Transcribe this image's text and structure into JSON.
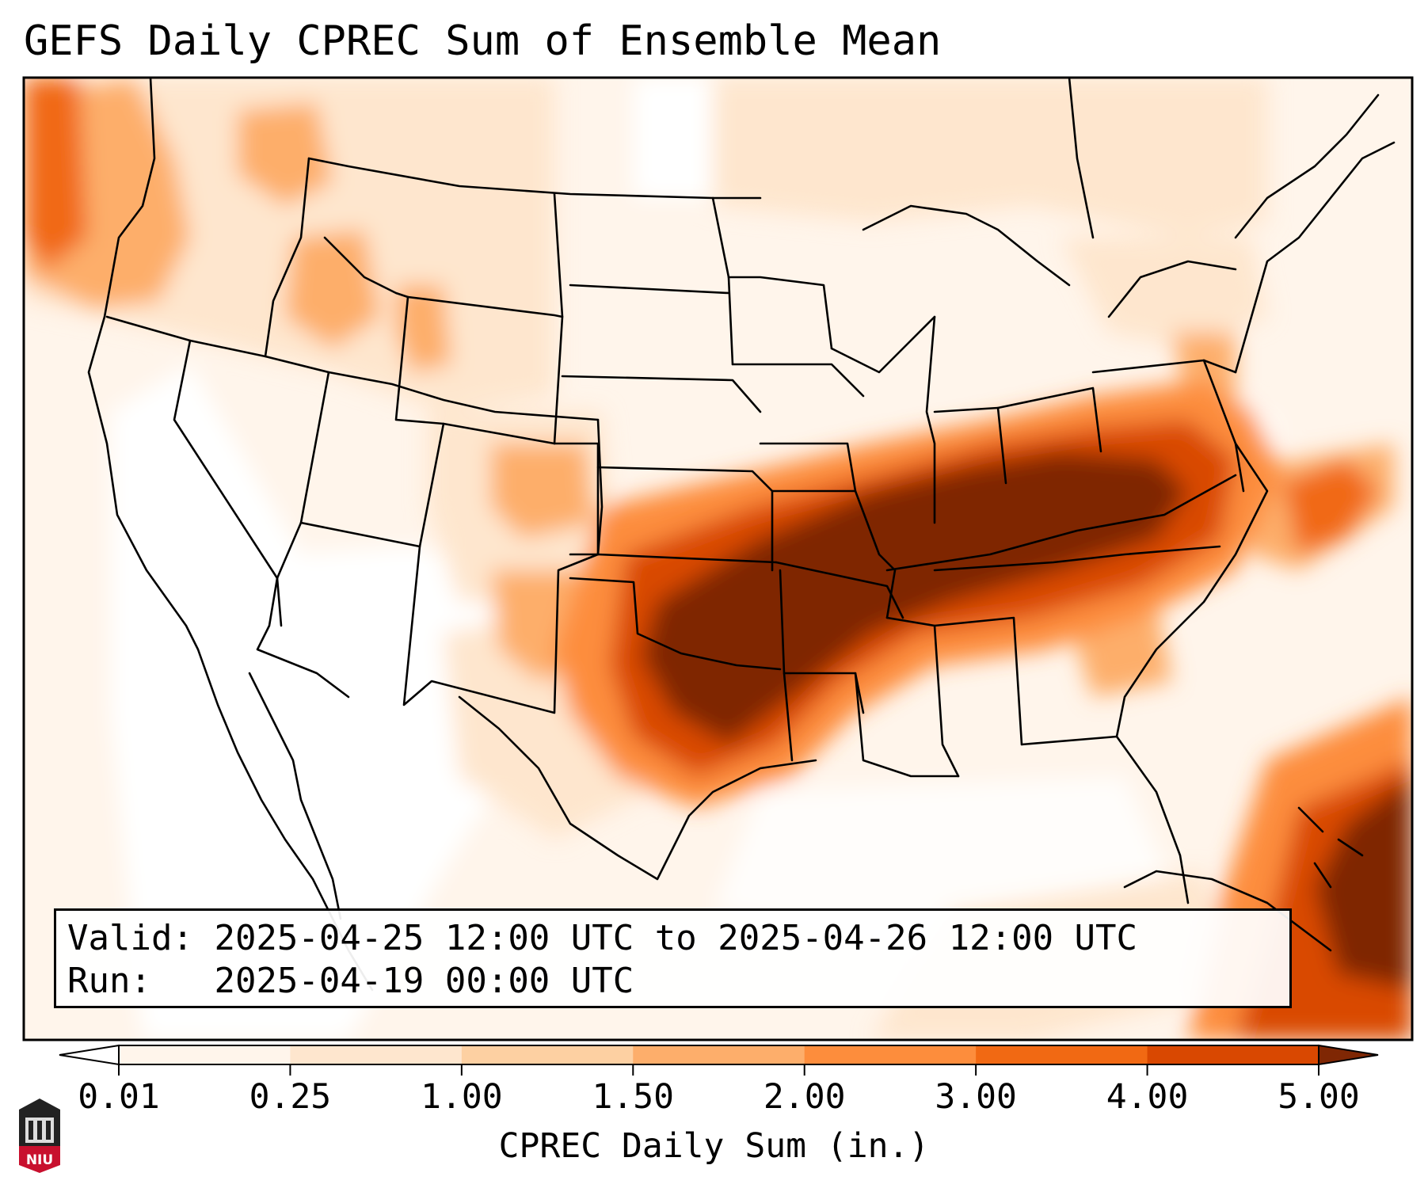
{
  "title": "GEFS Daily CPREC Sum of Ensemble Mean",
  "info": {
    "valid_label": "Valid:",
    "valid_value": "2025-04-25 12:00 UTC to 2025-04-26 12:00 UTC",
    "run_label": "Run:",
    "run_value": "2025-04-19 00:00 UTC"
  },
  "colorbar": {
    "label": "CPREC Daily Sum (in.)",
    "ticks": [
      "0.01",
      "0.25",
      "1.00",
      "1.50",
      "2.00",
      "3.00",
      "4.00",
      "5.00"
    ],
    "colors": [
      "#fff5eb",
      "#fee6ce",
      "#fdd0a2",
      "#fdae6b",
      "#fd8d3c",
      "#f16913",
      "#d94801",
      "#a63603"
    ],
    "under_color": "#ffffff",
    "over_color": "#7f2704"
  },
  "logo": {
    "text": "NIU"
  }
}
